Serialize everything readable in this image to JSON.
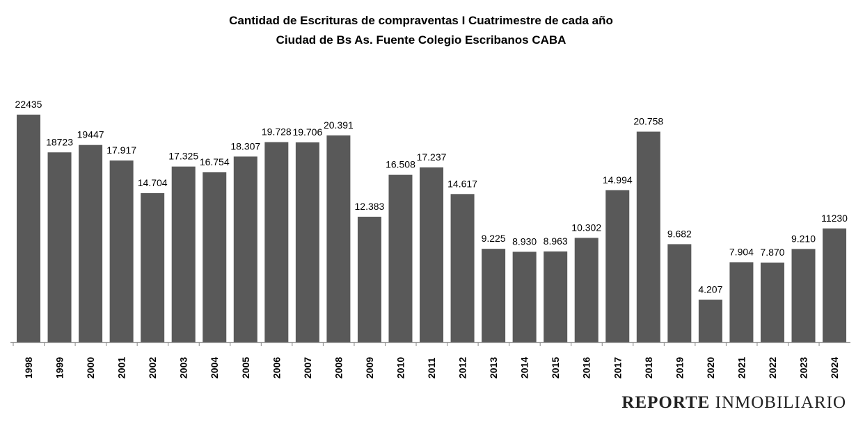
{
  "chart_data": {
    "type": "bar",
    "title": "Cantidad de Escrituras de compraventas  I Cuatrimestre de cada año",
    "subtitle": "Ciudad de Bs As. Fuente Colegio Escribanos CABA",
    "xlabel": "",
    "ylabel": "",
    "ylim": [
      0,
      25000
    ],
    "grid": false,
    "bar_color": "#595959",
    "categories": [
      "1998",
      "1999",
      "2000",
      "2001",
      "2002",
      "2003",
      "2004",
      "2005",
      "2006",
      "2007",
      "2008",
      "2009",
      "2010",
      "2011",
      "2012",
      "2013",
      "2014",
      "2015",
      "2016",
      "2017",
      "2018",
      "2019",
      "2020",
      "2021",
      "2022",
      "2023",
      "2024"
    ],
    "values": [
      22435,
      18723,
      19447,
      17917,
      14704,
      17325,
      16754,
      18307,
      19728,
      19706,
      20391,
      12383,
      16508,
      17237,
      14617,
      9225,
      8930,
      8963,
      10302,
      14994,
      20758,
      9682,
      4207,
      7904,
      7870,
      9210,
      11230
    ],
    "labels": [
      "22435",
      "18723",
      "19447",
      "17.917",
      "14.704",
      "17.325",
      "16.754",
      "18.307",
      "19.728",
      "19.706",
      "20.391",
      "12.383",
      "16.508",
      "17.237",
      "14.617",
      "9.225",
      "8.930",
      "8.963",
      "10.302",
      "14.994",
      "20.758",
      "9.682",
      "4.207",
      "7.904",
      "7.870",
      "9.210",
      "11230"
    ]
  },
  "watermark": {
    "bold": "REPORTE",
    "regular": "INMOBILIARIO"
  }
}
